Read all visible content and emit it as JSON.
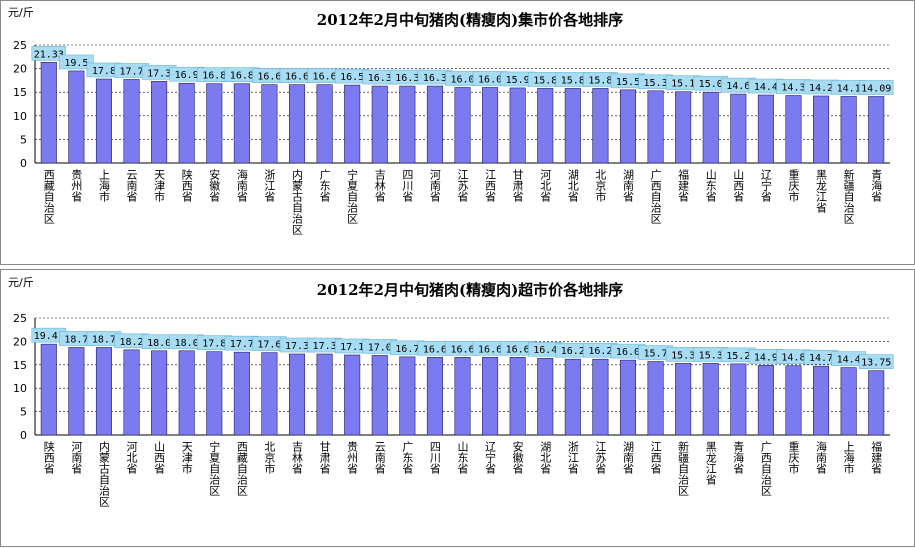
{
  "chart_data": [
    {
      "type": "bar",
      "title": "2012年2月中旬猪肉(精瘦肉)集市价各地排序",
      "y_label": "元/斤",
      "categories": [
        "西藏自治区",
        "贵州省",
        "上海市",
        "云南省",
        "天津市",
        "陕西省",
        "安徽省",
        "海南省",
        "浙江省",
        "内蒙古自治区",
        "广东省",
        "宁夏自治区",
        "吉林省",
        "四川省",
        "河南省",
        "江苏省",
        "江西省",
        "甘肃省",
        "河北省",
        "湖北省",
        "北京市",
        "湖南省",
        "广西自治区",
        "福建省",
        "山东省",
        "山西省",
        "辽宁省",
        "重庆市",
        "黑龙江省",
        "新疆自治区",
        "青海省"
      ],
      "values": [
        21.33,
        19.5,
        17.8,
        17.7,
        17.3,
        16.9,
        16.8,
        16.8,
        16.6,
        16.6,
        16.6,
        16.5,
        16.3,
        16.3,
        16.3,
        16.0,
        16.0,
        15.9,
        15.8,
        15.8,
        15.8,
        15.5,
        15.3,
        15.1,
        15.0,
        14.6,
        14.4,
        14.3,
        14.2,
        14.1,
        14.09
      ],
      "value_labels": [
        "21.33",
        "19.5",
        "17.8",
        "17.7",
        "17.3",
        "16.9",
        "16.8",
        "16.8",
        "16.6",
        "16.6",
        "16.6",
        "16.5",
        "16.3",
        "16.3",
        "16.3",
        "16.0",
        "16.0",
        "15.9",
        "15.8",
        "15.8",
        "15.8",
        "15.5",
        "15.3",
        "15.1",
        "15.0",
        "14.6",
        "14.4",
        "14.3",
        "14.2",
        "14.1",
        "14.09"
      ],
      "color": "#7b7bef",
      "ylim": [
        0,
        25
      ],
      "yticks": [
        0,
        5,
        10,
        15,
        20,
        25
      ],
      "grid": true
    },
    {
      "type": "bar",
      "title": "2012年2月中旬猪肉(精瘦肉)超市价各地排序",
      "y_label": "元/斤",
      "categories": [
        "陕西省",
        "河南省",
        "内蒙古自治区",
        "河北省",
        "山西省",
        "天津市",
        "宁夏自治区",
        "西藏自治区",
        "北京市",
        "吉林省",
        "甘肃省",
        "贵州省",
        "云南省",
        "广东省",
        "四川省",
        "山东省",
        "辽宁省",
        "安徽省",
        "湖北省",
        "浙江省",
        "江苏省",
        "湖南省",
        "江西省",
        "新疆自治区",
        "黑龙江省",
        "青海省",
        "广西自治区",
        "重庆市",
        "海南省",
        "上海市",
        "福建省"
      ],
      "values": [
        19.41,
        18.7,
        18.7,
        18.2,
        18.0,
        18.0,
        17.8,
        17.7,
        17.6,
        17.3,
        17.3,
        17.1,
        17.0,
        16.7,
        16.6,
        16.6,
        16.6,
        16.6,
        16.4,
        16.2,
        16.2,
        16.0,
        15.7,
        15.3,
        15.3,
        15.2,
        14.9,
        14.8,
        14.7,
        14.4,
        13.75
      ],
      "value_labels": [
        "19.41",
        "18.7",
        "18.7",
        "18.2",
        "18.0",
        "18.0",
        "17.8",
        "17.7",
        "17.6",
        "17.3",
        "17.3",
        "17.1",
        "17.0",
        "16.7",
        "16.6",
        "16.6",
        "16.6",
        "16.6",
        "16.4",
        "16.2",
        "16.2",
        "16.0",
        "15.7",
        "15.3",
        "15.3",
        "15.2",
        "14.9",
        "14.8",
        "14.7",
        "14.4",
        "13.75"
      ],
      "color": "#7b7bef",
      "ylim": [
        0,
        25
      ],
      "yticks": [
        0,
        5,
        10,
        15,
        20,
        25
      ],
      "grid": true
    }
  ]
}
